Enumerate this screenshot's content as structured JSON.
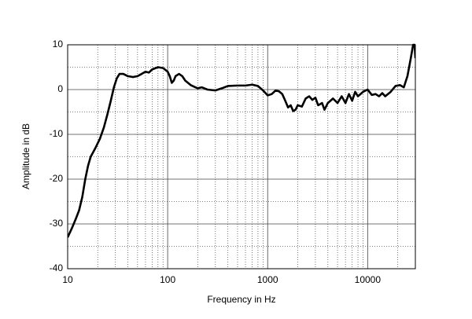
{
  "chart_data": {
    "type": "line",
    "x_label": "Frequency in Hz",
    "y_label": "Amplitude in dB",
    "log_x": true,
    "grid": true,
    "xlim": [
      10,
      30000
    ],
    "ylim": [
      -40,
      10
    ],
    "xticks": [
      10,
      100,
      1000,
      10000
    ],
    "yticks": [
      -40,
      -30,
      -20,
      -10,
      0,
      10
    ],
    "xminor": [
      20,
      30,
      40,
      50,
      60,
      70,
      80,
      90,
      200,
      300,
      400,
      500,
      600,
      700,
      800,
      900,
      2000,
      3000,
      4000,
      5000,
      6000,
      7000,
      8000,
      9000,
      20000
    ],
    "yminor": [
      -35,
      -25,
      -15,
      -5,
      5
    ],
    "series": [
      {
        "color": "#000000",
        "x": [
          10,
          11,
          12,
          13,
          14,
          15,
          16,
          17,
          19,
          21,
          23,
          25,
          27,
          29,
          31,
          33,
          36,
          40,
          45,
          50,
          55,
          60,
          65,
          70,
          80,
          90,
          100,
          105,
          110,
          115,
          120,
          130,
          140,
          150,
          170,
          190,
          200,
          220,
          250,
          300,
          350,
          400,
          500,
          600,
          700,
          800,
          900,
          1000,
          1100,
          1200,
          1300,
          1400,
          1500,
          1600,
          1700,
          1800,
          1900,
          2000,
          2200,
          2400,
          2600,
          2800,
          3000,
          3200,
          3500,
          3700,
          4000,
          4500,
          5000,
          5500,
          6000,
          6500,
          7000,
          7500,
          8000,
          9000,
          10000,
          11000,
          12000,
          13000,
          14000,
          15000,
          17000,
          19000,
          21000,
          23000,
          25000,
          27000,
          28500,
          29500,
          30000
        ],
        "values": [
          -33,
          -31,
          -29,
          -27,
          -24,
          -20,
          -17,
          -15,
          -13,
          -11,
          -8.5,
          -5.5,
          -2.5,
          0.5,
          2.5,
          3.5,
          3.5,
          3,
          2.8,
          3,
          3.5,
          4,
          3.8,
          4.5,
          5,
          4.8,
          4,
          3,
          1.5,
          2,
          3,
          3.5,
          3,
          2,
          1,
          0.5,
          0.3,
          0.5,
          0,
          -0.2,
          0.3,
          0.8,
          0.9,
          0.9,
          1.1,
          0.8,
          -0.2,
          -1.3,
          -1,
          -0.2,
          -0.4,
          -1,
          -2.5,
          -4,
          -3.5,
          -4.8,
          -4.5,
          -3.5,
          -3.8,
          -2,
          -1.5,
          -2.3,
          -1.8,
          -3.5,
          -3,
          -4.5,
          -3,
          -2,
          -3,
          -1.5,
          -3,
          -1,
          -2.5,
          -0.5,
          -1.5,
          -0.5,
          0,
          -1.2,
          -1,
          -1.5,
          -0.8,
          -1.5,
          -0.5,
          0.8,
          1,
          0.5,
          3,
          7,
          10,
          10,
          7
        ]
      }
    ]
  }
}
